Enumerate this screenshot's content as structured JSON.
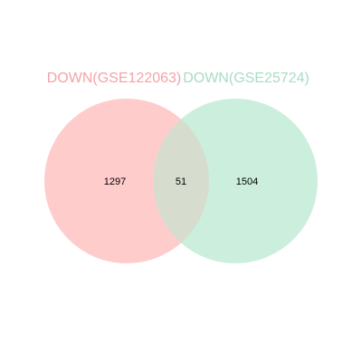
{
  "venn": {
    "sets": [
      {
        "label": "DOWN(GSE122063)",
        "fill_color": "#FFCCCC",
        "text_color": "#F4A3A8"
      },
      {
        "label": "DOWN(GSE25724)",
        "fill_color": "#CCEEDD",
        "text_color": "#A8DCC4"
      }
    ],
    "counts": {
      "only_set1": "1297",
      "intersection": "51",
      "only_set2": "1504"
    },
    "intersection_color": "#D6DDCE"
  }
}
